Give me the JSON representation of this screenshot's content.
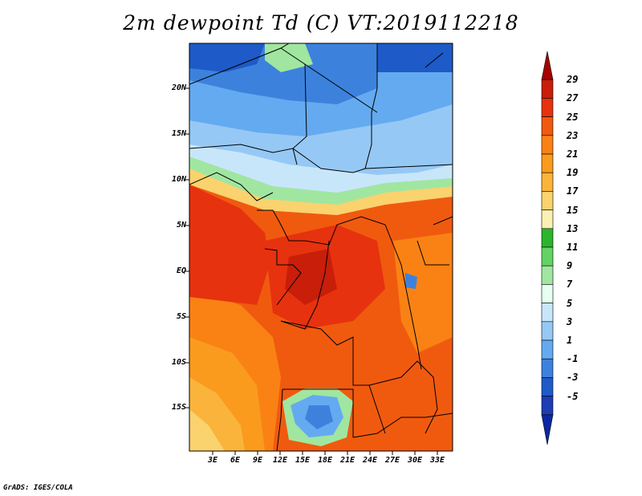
{
  "title": "2m dewpoint Td (C) VT:2019112218",
  "credit": "GrADS: IGES/COLA",
  "map": {
    "lat_ticks": [
      "20N",
      "15N",
      "10N",
      "5N",
      "EQ",
      "5S",
      "10S",
      "15S"
    ],
    "lon_ticks": [
      "3E",
      "6E",
      "9E",
      "12E",
      "15E",
      "18E",
      "21E",
      "24E",
      "27E",
      "30E",
      "33E"
    ],
    "field_regions": {
      "sahara_north": "-3 to 5",
      "sahel_band": "7 to 15",
      "west_africa_coast": "23 to 25",
      "congo_basin": "23 to 25",
      "southern_atlantic": "17 to 21",
      "angola_plateau": "3 to 11"
    }
  },
  "colorbar": {
    "labels": [
      "29",
      "27",
      "25",
      "23",
      "21",
      "19",
      "17",
      "15",
      "13",
      "11",
      "9",
      "7",
      "5",
      "3",
      "1",
      "-1",
      "-3",
      "-5"
    ],
    "colors": [
      "#a50000",
      "#c81e0a",
      "#e6320f",
      "#f05a0f",
      "#fa8214",
      "#fa9b1e",
      "#fab43c",
      "#fad26e",
      "#faf0b4",
      "#2db42d",
      "#64d264",
      "#a0e6a0",
      "#e6fff0",
      "#c8e6fa",
      "#96c8f5",
      "#64aaf0",
      "#3c82dc",
      "#1e5ac8",
      "#1e3cb4",
      "#0a28a0"
    ]
  }
}
